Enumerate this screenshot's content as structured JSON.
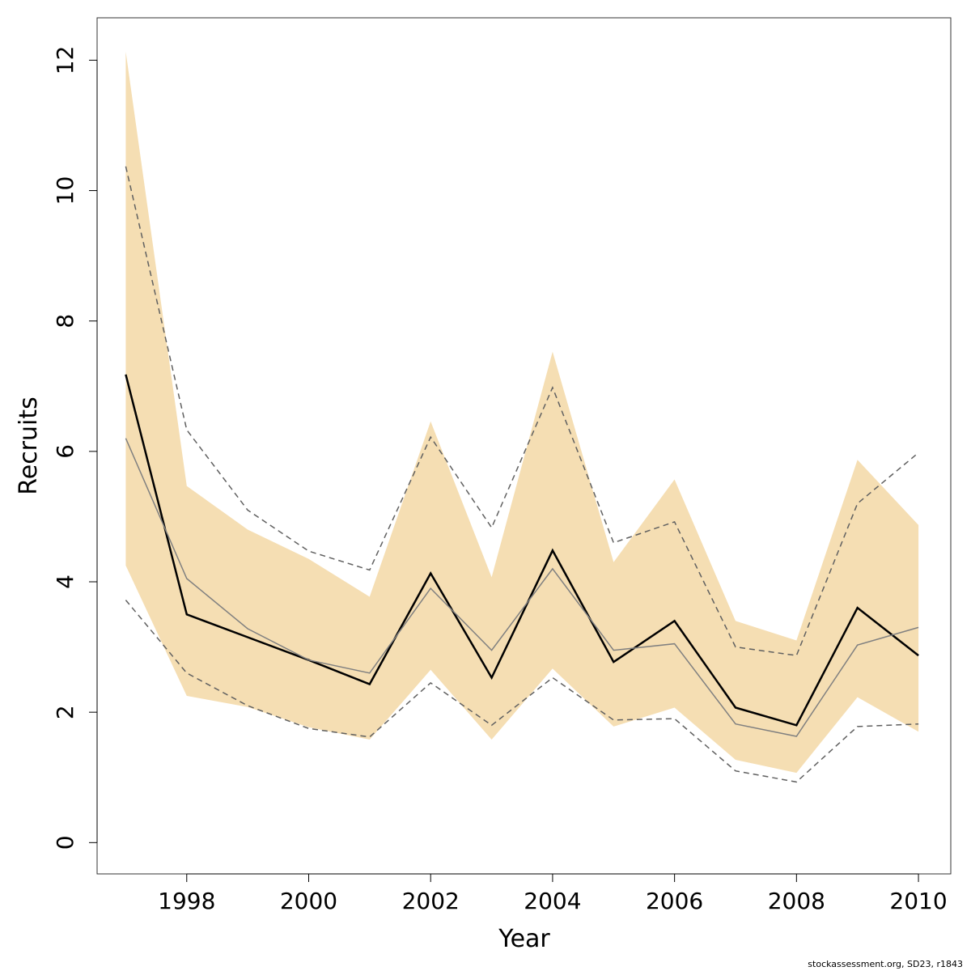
{
  "chart_data": {
    "type": "line",
    "title": "",
    "xlabel": "Year",
    "ylabel": "Recruits",
    "xlim": [
      1996.53,
      2010.53
    ],
    "ylim": [
      -0.48,
      12.65
    ],
    "x_ticks": [
      1998,
      2000,
      2002,
      2004,
      2006,
      2008,
      2010
    ],
    "y_ticks": [
      0,
      2,
      4,
      6,
      8,
      10,
      12
    ],
    "grid": false,
    "legend": "none",
    "x": [
      1997,
      1998,
      1999,
      2000,
      2001,
      2002,
      2003,
      2004,
      2005,
      2006,
      2007,
      2008,
      2009,
      2010
    ],
    "series": [
      {
        "type": "band",
        "color": "#f5deb3",
        "lower": [
          4.25,
          2.25,
          2.08,
          1.77,
          1.58,
          2.65,
          1.58,
          2.67,
          1.78,
          2.07,
          1.27,
          1.07,
          2.23,
          1.7
        ],
        "upper": [
          12.13,
          5.47,
          4.8,
          4.35,
          3.77,
          6.46,
          4.07,
          7.53,
          4.3,
          5.57,
          3.4,
          3.1,
          5.87,
          4.87
        ]
      },
      {
        "type": "line",
        "color": "#000000",
        "style": "solid-thick",
        "values": [
          7.18,
          3.5,
          3.15,
          2.8,
          2.43,
          4.13,
          2.53,
          4.48,
          2.77,
          3.4,
          2.07,
          1.8,
          3.6,
          2.87
        ]
      },
      {
        "type": "line",
        "color": "#808080",
        "style": "solid-thin",
        "values": [
          6.2,
          4.05,
          3.28,
          2.8,
          2.6,
          3.9,
          2.95,
          4.2,
          2.95,
          3.05,
          1.82,
          1.63,
          3.03,
          3.3
        ]
      },
      {
        "type": "line",
        "color": "#606060",
        "style": "dashed",
        "values": [
          10.37,
          6.33,
          5.1,
          4.47,
          4.18,
          6.22,
          4.83,
          6.98,
          4.6,
          4.92,
          3.0,
          2.87,
          5.2,
          5.98
        ]
      },
      {
        "type": "line",
        "color": "#606060",
        "style": "dashed",
        "values": [
          3.72,
          2.6,
          2.1,
          1.75,
          1.62,
          2.45,
          1.8,
          2.53,
          1.88,
          1.9,
          1.1,
          0.93,
          1.78,
          1.82
        ]
      }
    ]
  },
  "footer": "stockassessment.org, SD23, r1843"
}
